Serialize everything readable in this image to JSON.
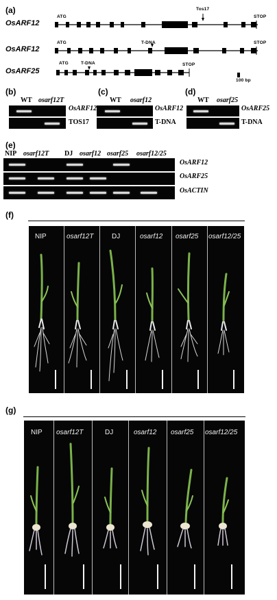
{
  "panel_a": {
    "label": "(a)",
    "genes": [
      {
        "name": "OsARF12",
        "start": "ATG",
        "stop": "STOP",
        "insert": "Tos17"
      },
      {
        "name": "OsARF12",
        "start": "ATG",
        "stop": "STOP",
        "insert": "T-DNA"
      },
      {
        "name": "OsARF25",
        "start": "ATG",
        "stop": "STOP",
        "insert": "T-DNA"
      }
    ],
    "scale": "100 bp"
  },
  "panel_b": {
    "label": "(b)",
    "lanes": [
      "WT",
      "osarf12T"
    ],
    "rows": [
      "OsARF12",
      "TOS17"
    ]
  },
  "panel_c": {
    "label": "(c)",
    "lanes": [
      "WT",
      "osarf12"
    ],
    "rows": [
      "OsARF12",
      "T-DNA"
    ]
  },
  "panel_d": {
    "label": "(d)",
    "lanes": [
      "WT",
      "osarf25"
    ],
    "rows": [
      "OsARF25",
      "T-DNA"
    ]
  },
  "panel_e": {
    "label": "(e)",
    "lanes": [
      "NIP",
      "osarf12T",
      "DJ",
      "osarf12",
      "osarf25",
      "osarf12/25"
    ],
    "rows": [
      "OsARF12",
      "OsARF25",
      "OsACTIN"
    ]
  },
  "panel_f": {
    "label": "(f)",
    "plants": [
      "NIP",
      "osarf12T",
      "DJ",
      "osarf12",
      "osarf25",
      "osarf12/25"
    ]
  },
  "panel_g": {
    "label": "(g)",
    "plants": [
      "NIP",
      "osarf12T",
      "DJ",
      "osarf12",
      "osarf25",
      "osarf12/25"
    ]
  }
}
